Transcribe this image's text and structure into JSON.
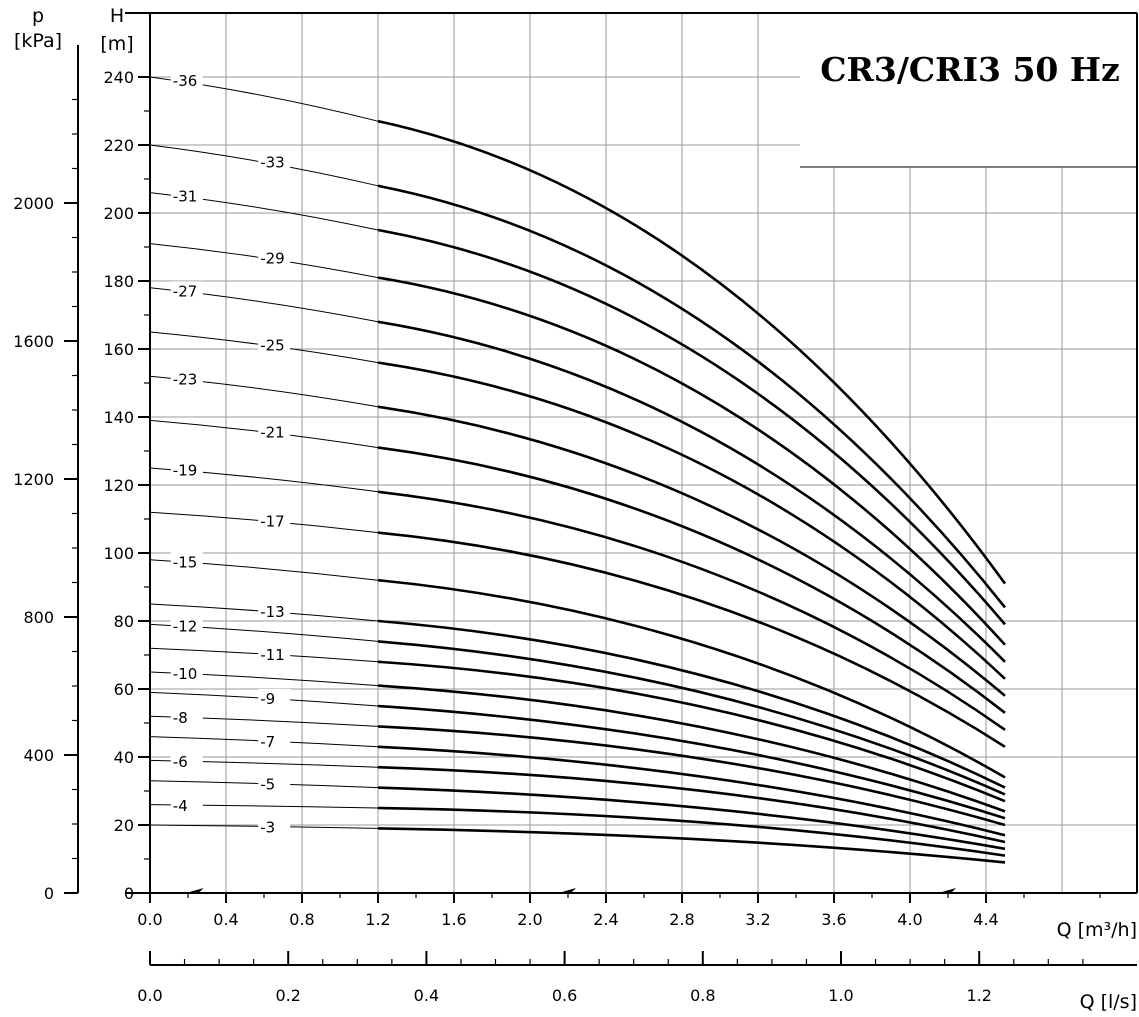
{
  "chart_data": {
    "type": "line",
    "title": "CR3/CRI3 50 Hz",
    "y_axis_head": {
      "symbol": "H",
      "unit": "[m]",
      "ticks": [
        0,
        20,
        40,
        60,
        80,
        100,
        120,
        140,
        160,
        180,
        200,
        220,
        240
      ],
      "ylim": [
        0,
        250
      ]
    },
    "y_axis_pressure": {
      "symbol": "p",
      "unit": "[kPa]",
      "ticks": [
        0,
        400,
        800,
        1200,
        1600,
        2000
      ]
    },
    "x_axis_flow_m3h": {
      "label": "Q [m³/h]",
      "ticks": [
        "0.0",
        "0.4",
        "0.8",
        "1.2",
        "1.6",
        "2.0",
        "2.4",
        "2.8",
        "3.2",
        "3.6",
        "4.0",
        "4.4"
      ],
      "xlim": [
        0,
        5.2
      ]
    },
    "x_axis_flow_ls": {
      "label": "Q [l/s]",
      "ticks": [
        "0.0",
        "0.2",
        "0.4",
        "0.6",
        "0.8",
        "1.0",
        "1.2"
      ]
    },
    "grid": true,
    "series": [
      {
        "name": "-36",
        "values": [
          [
            0,
            240
          ],
          [
            1.2,
            227
          ],
          [
            4.5,
            91
          ]
        ]
      },
      {
        "name": "-33",
        "values": [
          [
            0,
            220
          ],
          [
            1.2,
            208
          ],
          [
            4.5,
            84
          ]
        ]
      },
      {
        "name": "-31",
        "values": [
          [
            0,
            206
          ],
          [
            1.2,
            195
          ],
          [
            4.5,
            79
          ]
        ]
      },
      {
        "name": "-29",
        "values": [
          [
            0,
            191
          ],
          [
            1.2,
            181
          ],
          [
            4.5,
            73
          ]
        ]
      },
      {
        "name": "-27",
        "values": [
          [
            0,
            178
          ],
          [
            1.2,
            168
          ],
          [
            4.5,
            68
          ]
        ]
      },
      {
        "name": "-25",
        "values": [
          [
            0,
            165
          ],
          [
            1.2,
            156
          ],
          [
            4.5,
            63
          ]
        ]
      },
      {
        "name": "-23",
        "values": [
          [
            0,
            152
          ],
          [
            1.2,
            143
          ],
          [
            4.5,
            58
          ]
        ]
      },
      {
        "name": "-21",
        "values": [
          [
            0,
            139
          ],
          [
            1.2,
            131
          ],
          [
            4.5,
            53
          ]
        ]
      },
      {
        "name": "-19",
        "values": [
          [
            0,
            125
          ],
          [
            1.2,
            118
          ],
          [
            4.5,
            48
          ]
        ]
      },
      {
        "name": "-17",
        "values": [
          [
            0,
            112
          ],
          [
            1.2,
            106
          ],
          [
            4.5,
            43
          ]
        ]
      },
      {
        "name": "-15",
        "values": [
          [
            0,
            98
          ],
          [
            1.2,
            92
          ],
          [
            4.5,
            34
          ]
        ]
      },
      {
        "name": "-13",
        "values": [
          [
            0,
            85
          ],
          [
            1.2,
            80
          ],
          [
            4.5,
            31
          ]
        ]
      },
      {
        "name": "-12",
        "values": [
          [
            0,
            79
          ],
          [
            1.2,
            74
          ],
          [
            4.5,
            29
          ]
        ]
      },
      {
        "name": "-11",
        "values": [
          [
            0,
            72
          ],
          [
            1.2,
            68
          ],
          [
            4.5,
            27
          ]
        ]
      },
      {
        "name": "-10",
        "values": [
          [
            0,
            65
          ],
          [
            1.2,
            61
          ],
          [
            4.5,
            24
          ]
        ]
      },
      {
        "name": "-9",
        "values": [
          [
            0,
            59
          ],
          [
            1.2,
            55
          ],
          [
            4.5,
            22
          ]
        ]
      },
      {
        "name": "-8",
        "values": [
          [
            0,
            52
          ],
          [
            1.2,
            49
          ],
          [
            4.5,
            20
          ]
        ]
      },
      {
        "name": "-7",
        "values": [
          [
            0,
            46
          ],
          [
            1.2,
            43
          ],
          [
            4.5,
            17
          ]
        ]
      },
      {
        "name": "-6",
        "values": [
          [
            0,
            39
          ],
          [
            1.2,
            37
          ],
          [
            4.5,
            15
          ]
        ]
      },
      {
        "name": "-5",
        "values": [
          [
            0,
            33
          ],
          [
            1.2,
            31
          ],
          [
            4.5,
            13
          ]
        ]
      },
      {
        "name": "-4",
        "values": [
          [
            0,
            26
          ],
          [
            1.2,
            25
          ],
          [
            4.5,
            11
          ]
        ]
      },
      {
        "name": "-3",
        "values": [
          [
            0,
            20
          ],
          [
            1.2,
            19
          ],
          [
            4.5,
            9
          ]
        ]
      }
    ]
  }
}
